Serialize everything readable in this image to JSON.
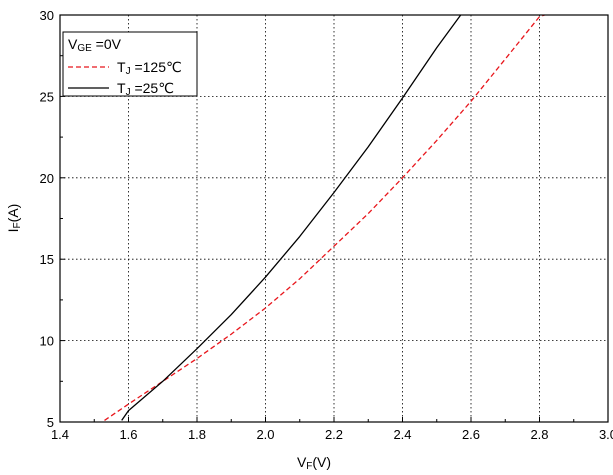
{
  "chart_data": {
    "type": "line",
    "xlabel": "VF(V)",
    "xlabel_main": "V",
    "xlabel_sub": "F",
    "xlabel_rest": "(V)",
    "ylabel": "IF(A)",
    "ylabel_main": "I",
    "ylabel_sub": "F",
    "ylabel_rest": "(A)",
    "xlim": [
      1.4,
      3.0
    ],
    "ylim": [
      5,
      30
    ],
    "xticks": [
      "1.4",
      "1.6",
      "1.8",
      "2.0",
      "2.2",
      "2.4",
      "2.6",
      "2.8",
      "3.0"
    ],
    "yticks": [
      "5",
      "10",
      "15",
      "20",
      "25",
      "30"
    ],
    "grid": true,
    "legend_position": "top-left",
    "legend_title": {
      "main": "V",
      "sub": "GE",
      "rest": " =0V"
    },
    "series": [
      {
        "name": "TJ =125℃",
        "label_main": "T",
        "label_sub": "J",
        "label_rest": " =125℃",
        "color": "#e8161c",
        "dash": "dashed",
        "x": [
          1.53,
          1.6,
          1.7,
          1.8,
          1.9,
          2.0,
          2.1,
          2.2,
          2.3,
          2.4,
          2.5,
          2.6,
          2.7,
          2.8,
          2.815
        ],
        "y": [
          5.1,
          6.1,
          7.5,
          8.9,
          10.4,
          12.0,
          13.8,
          15.8,
          17.8,
          20.0,
          22.3,
          24.7,
          27.3,
          29.9,
          30.0
        ]
      },
      {
        "name": "TJ =25℃",
        "label_main": "T",
        "label_sub": "J",
        "label_rest": " =25℃",
        "color": "#000000",
        "dash": "solid",
        "x": [
          1.58,
          1.6,
          1.7,
          1.8,
          1.9,
          2.0,
          2.1,
          2.2,
          2.3,
          2.4,
          2.5,
          2.57
        ],
        "y": [
          5.1,
          5.7,
          7.5,
          9.5,
          11.6,
          13.9,
          16.4,
          19.1,
          21.9,
          24.9,
          28.0,
          30.0
        ]
      }
    ]
  }
}
